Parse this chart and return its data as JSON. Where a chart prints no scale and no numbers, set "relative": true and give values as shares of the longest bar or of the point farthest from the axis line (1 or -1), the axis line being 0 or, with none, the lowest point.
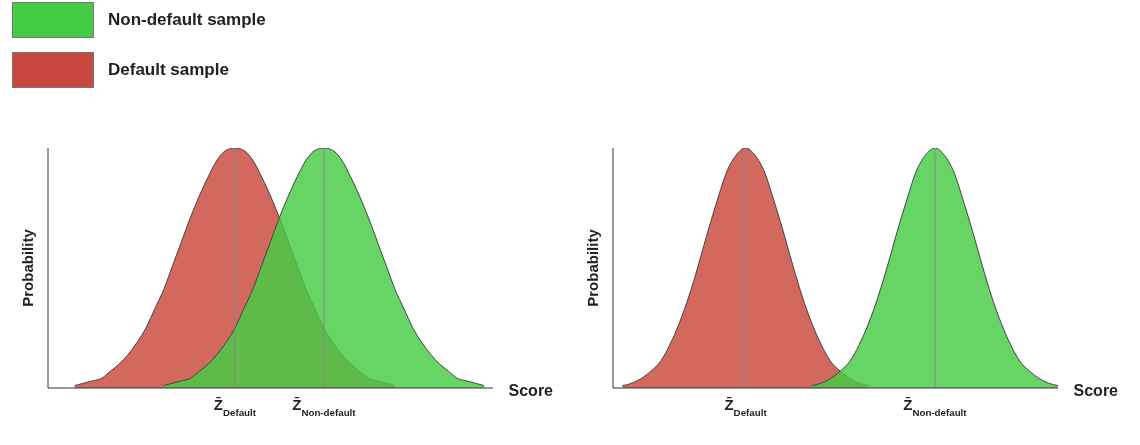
{
  "chart_data": [
    {
      "type": "area",
      "relative": true,
      "xlabel": "Score",
      "ylabel": "Probability",
      "legend": "top left",
      "categories": [
        null,
        null,
        null,
        null,
        null,
        null,
        null,
        null,
        null,
        null,
        null,
        null,
        null,
        null,
        null,
        null,
        null,
        null,
        null,
        null,
        null,
        "Z̄$_{Default}$",
        null,
        null,
        null,
        null,
        null,
        null,
        null,
        null,
        null,
        "Z̄$_{Non-default}$",
        null,
        null,
        null,
        null,
        null,
        null,
        null,
        null,
        null,
        null,
        null,
        null,
        null,
        null,
        null,
        null,
        null,
        null,
        null
      ],
      "series": [
        {
          "name": "Default sample",
          "color": "#c9473c",
          "values": [
            null,
            null,
            null,
            0.01,
            0.02,
            0.03,
            0.04,
            0.07,
            0.1,
            0.14,
            0.19,
            0.25,
            0.33,
            0.41,
            0.51,
            0.61,
            0.71,
            0.8,
            0.88,
            0.95,
            0.99,
            1,
            0.99,
            0.95,
            0.88,
            0.8,
            0.71,
            0.61,
            0.51,
            0.41,
            0.33,
            0.25,
            0.19,
            0.14,
            0.1,
            0.07,
            0.04,
            0.03,
            0.02,
            0.01,
            null,
            null,
            null,
            null,
            null,
            null,
            null,
            null,
            null,
            null,
            null
          ]
        },
        {
          "name": "Non-default sample",
          "color": "#44cc44",
          "values": [
            null,
            null,
            null,
            null,
            null,
            null,
            null,
            null,
            null,
            null,
            null,
            null,
            null,
            0.01,
            0.02,
            0.03,
            0.04,
            0.07,
            0.1,
            0.14,
            0.19,
            0.25,
            0.33,
            0.41,
            0.51,
            0.61,
            0.71,
            0.8,
            0.88,
            0.95,
            0.99,
            1,
            0.99,
            0.95,
            0.88,
            0.8,
            0.71,
            0.61,
            0.51,
            0.41,
            0.33,
            0.25,
            0.19,
            0.14,
            0.1,
            0.07,
            0.04,
            0.03,
            0.02,
            0.01,
            null
          ]
        }
      ],
      "ref_lines": [
        {
          "axis": "x",
          "value": "Z̄$_{Default}$",
          "color": "#888888"
        },
        {
          "axis": "x",
          "value": "Z̄$_{Non-default}$",
          "color": "#888888"
        }
      ]
    },
    {
      "type": "area",
      "relative": true,
      "xlabel": "Score",
      "ylabel": "Probability",
      "categories": [
        null,
        null,
        null,
        null,
        null,
        null,
        null,
        null,
        null,
        null,
        null,
        null,
        null,
        null,
        "Z̄$_{Default}$",
        null,
        null,
        null,
        null,
        null,
        null,
        null,
        null,
        null,
        null,
        null,
        null,
        null,
        null,
        null,
        null,
        null,
        null,
        null,
        "Z̄$_{Non-default}$",
        null,
        null,
        null,
        null,
        null,
        null,
        null,
        null,
        null,
        null,
        null,
        null,
        null
      ],
      "series": [
        {
          "color": "#c9473c",
          "values": [
            null,
            0.01,
            0.02,
            0.04,
            0.07,
            0.11,
            0.18,
            0.27,
            0.38,
            0.51,
            0.65,
            0.78,
            0.9,
            0.97,
            1,
            0.97,
            0.9,
            0.78,
            0.65,
            0.51,
            0.38,
            0.27,
            0.18,
            0.11,
            0.07,
            0.04,
            0.02,
            0.01,
            null,
            null,
            null,
            null,
            null,
            null,
            null,
            null,
            null,
            null,
            null,
            null,
            null,
            null,
            null,
            null,
            null,
            null,
            null,
            null
          ]
        },
        {
          "color": "#44cc44",
          "values": [
            null,
            null,
            null,
            null,
            null,
            null,
            null,
            null,
            null,
            null,
            null,
            null,
            null,
            null,
            null,
            null,
            null,
            null,
            null,
            null,
            null,
            0.01,
            0.02,
            0.04,
            0.07,
            0.11,
            0.18,
            0.27,
            0.38,
            0.51,
            0.65,
            0.78,
            0.9,
            0.97,
            1,
            0.97,
            0.9,
            0.78,
            0.65,
            0.51,
            0.38,
            0.27,
            0.18,
            0.11,
            0.07,
            0.04,
            0.02,
            0.01
          ]
        }
      ],
      "ref_lines": [
        {
          "axis": "x",
          "value": "Z̄$_{Default}$",
          "color": "#888888"
        },
        {
          "axis": "x",
          "value": "Z̄$_{Non-default}$",
          "color": "#888888"
        }
      ]
    }
  ]
}
